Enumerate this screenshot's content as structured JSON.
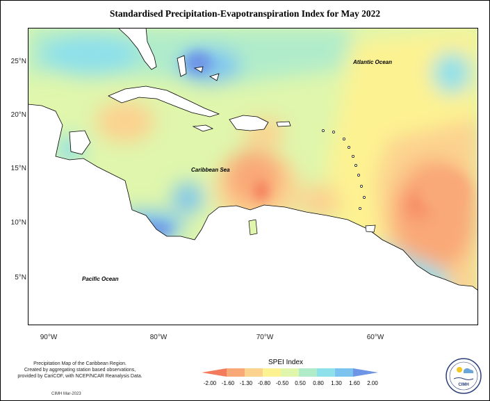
{
  "title": "Standardised Precipitation-Evapotranspiration Index for May 2022",
  "map": {
    "ocean_labels": {
      "atlantic": "Atlantic Ocean",
      "caribbean": "Caribbean Sea",
      "pacific": "Pacific Ocean"
    },
    "lat_ticks": [
      "25°N",
      "20°N",
      "15°N",
      "10°N",
      "5°N"
    ],
    "lon_ticks": [
      "90°W",
      "80°W",
      "70°W",
      "60°W"
    ]
  },
  "legend": {
    "title": "SPEI Index",
    "ticks": [
      "-2.00",
      "-1.60",
      "-1.30",
      "-0.80",
      "-0.50",
      "0.50",
      "0.80",
      "1.30",
      "1.60",
      "2.00"
    ],
    "colors": [
      "#f47a5c",
      "#f9a977",
      "#fcd28f",
      "#fdf292",
      "#dff6ac",
      "#b0ecca",
      "#8ee0ea",
      "#7cc3f0",
      "#6e95e6"
    ]
  },
  "footer": {
    "line1": "Precipitation Map of the Caribbean Region.",
    "line2": "Created by aggregating station based observations,",
    "line3": "provided by CariCOF, with NCEP/NCAR Reanalysis Data.",
    "credit": "CIMH Mar-2023"
  },
  "logo": {
    "text": "CIMH"
  }
}
